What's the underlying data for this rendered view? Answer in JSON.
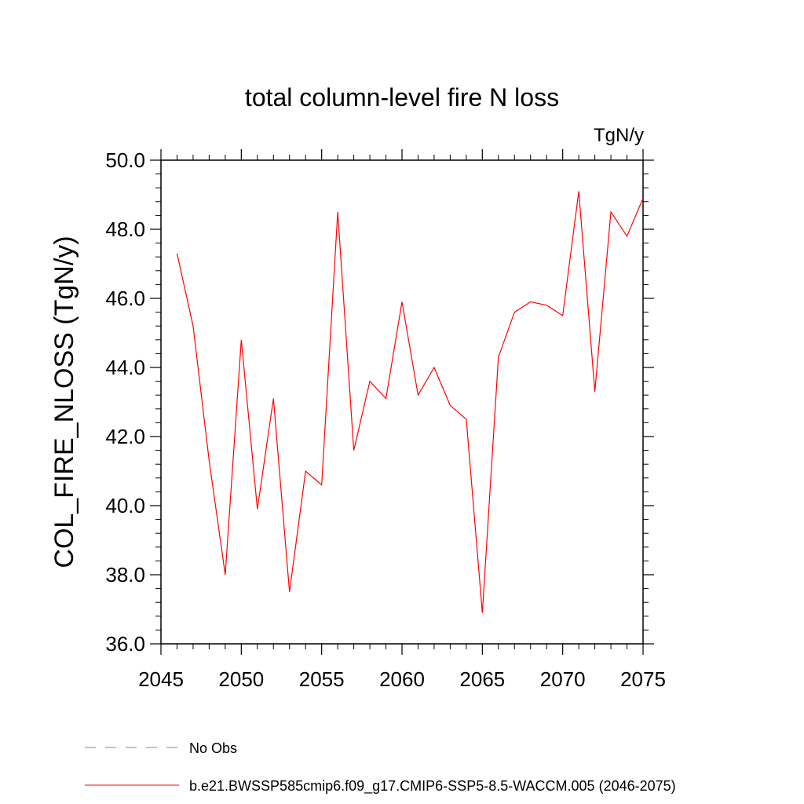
{
  "chart_data": {
    "type": "line",
    "title": "total column-level fire N loss",
    "units": "TgN/y",
    "ylabel": "COL_FIRE_NLOSS  (TgN/y)",
    "xlabel": "",
    "xlim": [
      2045,
      2075
    ],
    "ylim": [
      36.0,
      50.0
    ],
    "x_ticks": [
      2045,
      2050,
      2055,
      2060,
      2065,
      2070,
      2075
    ],
    "x_tick_labels": [
      "2045",
      "2050",
      "2055",
      "2060",
      "2065",
      "2070",
      "2075"
    ],
    "y_ticks": [
      36.0,
      38.0,
      40.0,
      42.0,
      44.0,
      46.0,
      48.0,
      50.0
    ],
    "y_tick_labels": [
      "36.0",
      "38.0",
      "40.0",
      "42.0",
      "44.0",
      "46.0",
      "48.0",
      "50.0"
    ],
    "x_minor_step": 1,
    "y_minor_step": 0.4,
    "grid": false,
    "series": [
      {
        "name": "b.e21.BWSSP585cmip6.f09_g17.CMIP6-SSP5-8.5-WACCM.005 (2046-2075)",
        "color": "#ff0000",
        "style": "solid",
        "x": [
          2046,
          2047,
          2048,
          2049,
          2050,
          2051,
          2052,
          2053,
          2054,
          2055,
          2056,
          2057,
          2058,
          2059,
          2060,
          2061,
          2062,
          2063,
          2064,
          2065,
          2066,
          2067,
          2068,
          2069,
          2070,
          2071,
          2072,
          2073,
          2074,
          2075
        ],
        "y": [
          47.3,
          45.2,
          41.3,
          38.0,
          44.8,
          39.9,
          43.1,
          37.5,
          41.0,
          40.6,
          48.5,
          41.6,
          43.6,
          43.1,
          45.9,
          43.2,
          44.0,
          42.9,
          42.5,
          36.9,
          44.3,
          45.6,
          45.9,
          45.8,
          45.5,
          49.1,
          43.3,
          48.5,
          47.8,
          48.9
        ]
      }
    ],
    "legend": {
      "placement": "bottom-left",
      "entries": [
        {
          "label": "No Obs",
          "color": "#8080b0",
          "style": "dashed"
        },
        {
          "label": "b.e21.BWSSP585cmip6.f09_g17.CMIP6-SSP5-8.5-WACCM.005 (2046-2075)",
          "color": "#ff0000",
          "style": "solid"
        }
      ]
    }
  }
}
